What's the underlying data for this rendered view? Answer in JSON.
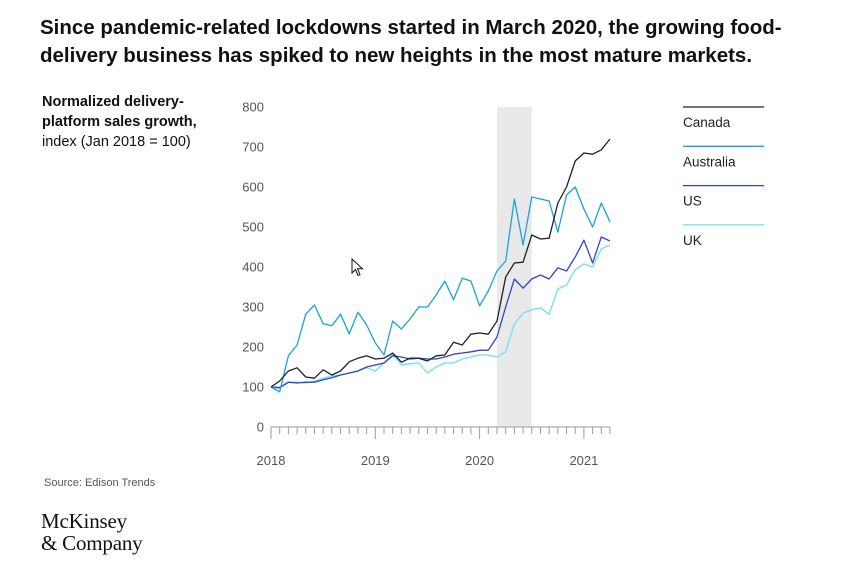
{
  "headline": "Since pandemic-related lockdowns started in March 2020, the growing food-delivery business has spiked to new heights in the most mature markets.",
  "y_title_bold": "Normalized delivery-platform sales growth,",
  "y_title_rest": " index (Jan 2018 = 100)",
  "source": "Source: Edison Trends",
  "logo": {
    "line1": "McKinsey",
    "line2": "& Company"
  },
  "chart_data": {
    "type": "line",
    "ylim": [
      0,
      800
    ],
    "yticks": [
      0,
      100,
      200,
      300,
      400,
      500,
      600,
      700,
      800
    ],
    "xlabels": [
      "2018",
      "2019",
      "2020",
      "2021"
    ],
    "xrange_months": 39,
    "highlight": {
      "start": 26,
      "end": 30,
      "color": "#e9e9e9"
    },
    "series": [
      {
        "name": "Canada",
        "color": "#1a2428",
        "values": [
          100,
          115,
          140,
          148,
          125,
          122,
          143,
          130,
          140,
          163,
          172,
          178,
          170,
          172,
          185,
          162,
          172,
          172,
          165,
          178,
          180,
          212,
          205,
          232,
          235,
          232,
          265,
          375,
          410,
          412,
          480,
          470,
          472,
          560,
          600,
          665,
          685,
          682,
          693,
          720
        ]
      },
      {
        "name": "Australia",
        "color": "#1aa3d9",
        "values": [
          100,
          88,
          178,
          205,
          282,
          305,
          258,
          253,
          282,
          233,
          287,
          255,
          210,
          180,
          265,
          245,
          270,
          300,
          300,
          330,
          365,
          318,
          372,
          365,
          303,
          340,
          390,
          415,
          570,
          455,
          575,
          570,
          565,
          487,
          580,
          600,
          545,
          500,
          560,
          513
        ]
      },
      {
        "name": "US",
        "color": "#3342c9",
        "values": [
          100,
          98,
          112,
          110,
          112,
          112,
          118,
          123,
          130,
          135,
          140,
          150,
          155,
          160,
          178,
          175,
          170,
          172,
          170,
          170,
          175,
          182,
          185,
          188,
          192,
          192,
          225,
          300,
          370,
          347,
          370,
          380,
          370,
          398,
          390,
          425,
          467,
          410,
          475,
          465
        ]
      },
      {
        "name": "UK",
        "color": "#6ee0ef",
        "values": [
          100,
          100,
          112,
          112,
          110,
          115,
          122,
          128,
          130,
          135,
          140,
          148,
          140,
          160,
          183,
          155,
          158,
          160,
          135,
          150,
          160,
          160,
          170,
          175,
          180,
          180,
          175,
          188,
          258,
          285,
          293,
          298,
          282,
          345,
          355,
          393,
          408,
          400,
          445,
          455
        ]
      }
    ]
  }
}
